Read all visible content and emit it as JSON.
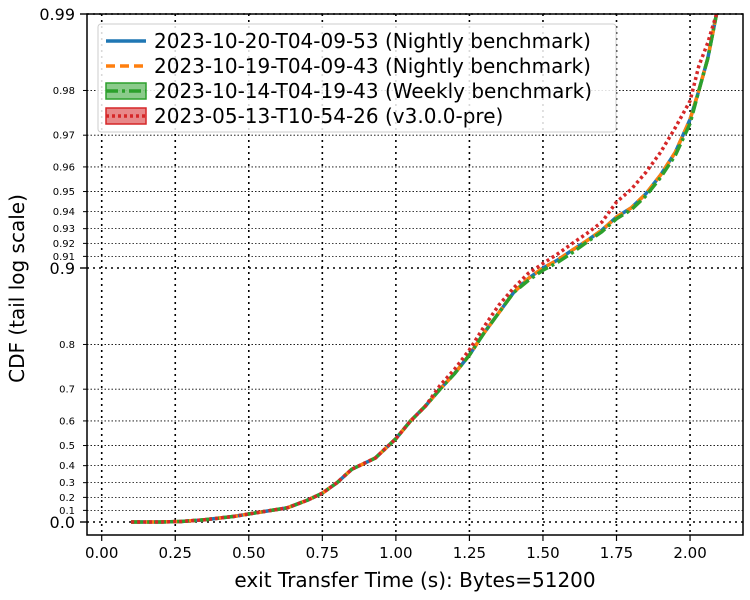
{
  "chart_data": {
    "type": "line",
    "xlabel": "exit Transfer Time (s): Bytes=51200",
    "ylabel": "CDF (tail log scale)",
    "xlim": [
      -0.05,
      2.18
    ],
    "x_ticks": [
      0.0,
      0.25,
      0.5,
      0.75,
      1.0,
      1.25,
      1.5,
      1.75,
      2.0
    ],
    "x_tick_labels": [
      "0.00",
      "0.25",
      "0.50",
      "0.75",
      "1.00",
      "1.25",
      "1.50",
      "1.75",
      "2.00"
    ],
    "y_scale": "tail-log",
    "y_major_ticks": [
      {
        "value": 0.0,
        "label": "0.0"
      },
      {
        "value": 0.9,
        "label": "0.9"
      },
      {
        "value": 0.99,
        "label": "0.99"
      }
    ],
    "y_minor_ticks": [
      {
        "value": 0.1,
        "label": "0.1"
      },
      {
        "value": 0.2,
        "label": "0.2"
      },
      {
        "value": 0.3,
        "label": "0.3"
      },
      {
        "value": 0.4,
        "label": "0.4"
      },
      {
        "value": 0.5,
        "label": "0.5"
      },
      {
        "value": 0.6,
        "label": "0.6"
      },
      {
        "value": 0.7,
        "label": "0.7"
      },
      {
        "value": 0.8,
        "label": "0.8"
      },
      {
        "value": 0.91,
        "label": "0.91"
      },
      {
        "value": 0.92,
        "label": "0.92"
      },
      {
        "value": 0.93,
        "label": "0.93"
      },
      {
        "value": 0.94,
        "label": "0.94"
      },
      {
        "value": 0.95,
        "label": "0.95"
      },
      {
        "value": 0.96,
        "label": "0.96"
      },
      {
        "value": 0.97,
        "label": "0.97"
      },
      {
        "value": 0.98,
        "label": "0.98"
      }
    ],
    "grid": true,
    "legend_position": "top-left",
    "series": [
      {
        "name": "2023-10-20-T04-09-53 (Nightly benchmark)",
        "color": "#1f77b4",
        "style": "solid",
        "points": [
          [
            0.1,
            0.0
          ],
          [
            0.2,
            0.0
          ],
          [
            0.27,
            0.005
          ],
          [
            0.35,
            0.02
          ],
          [
            0.45,
            0.05
          ],
          [
            0.55,
            0.09
          ],
          [
            0.63,
            0.12
          ],
          [
            0.7,
            0.18
          ],
          [
            0.75,
            0.23
          ],
          [
            0.8,
            0.3
          ],
          [
            0.85,
            0.38
          ],
          [
            0.93,
            0.44
          ],
          [
            1.0,
            0.53
          ],
          [
            1.05,
            0.6
          ],
          [
            1.1,
            0.65
          ],
          [
            1.15,
            0.7
          ],
          [
            1.2,
            0.74
          ],
          [
            1.25,
            0.78
          ],
          [
            1.3,
            0.82
          ],
          [
            1.35,
            0.85
          ],
          [
            1.4,
            0.875
          ],
          [
            1.45,
            0.89
          ],
          [
            1.5,
            0.9
          ],
          [
            1.55,
            0.907
          ],
          [
            1.6,
            0.915
          ],
          [
            1.65,
            0.922
          ],
          [
            1.7,
            0.929
          ],
          [
            1.75,
            0.937
          ],
          [
            1.8,
            0.942
          ],
          [
            1.85,
            0.949
          ],
          [
            1.9,
            0.957
          ],
          [
            1.95,
            0.965
          ],
          [
            2.0,
            0.974
          ],
          [
            2.03,
            0.98
          ],
          [
            2.06,
            0.985
          ],
          [
            2.09,
            0.99
          ]
        ]
      },
      {
        "name": "2023-10-19-T04-09-43 (Nightly benchmark)",
        "color": "#ff7f0e",
        "style": "dashed",
        "points": [
          [
            0.1,
            0.0
          ],
          [
            0.2,
            0.0
          ],
          [
            0.27,
            0.005
          ],
          [
            0.35,
            0.02
          ],
          [
            0.45,
            0.05
          ],
          [
            0.55,
            0.09
          ],
          [
            0.63,
            0.12
          ],
          [
            0.7,
            0.18
          ],
          [
            0.75,
            0.23
          ],
          [
            0.8,
            0.3
          ],
          [
            0.85,
            0.38
          ],
          [
            0.93,
            0.44
          ],
          [
            1.0,
            0.53
          ],
          [
            1.05,
            0.6
          ],
          [
            1.1,
            0.65
          ],
          [
            1.15,
            0.7
          ],
          [
            1.2,
            0.74
          ],
          [
            1.25,
            0.78
          ],
          [
            1.3,
            0.82
          ],
          [
            1.35,
            0.85
          ],
          [
            1.4,
            0.875
          ],
          [
            1.45,
            0.89
          ],
          [
            1.5,
            0.9
          ],
          [
            1.55,
            0.907
          ],
          [
            1.6,
            0.915
          ],
          [
            1.65,
            0.922
          ],
          [
            1.7,
            0.929
          ],
          [
            1.75,
            0.937
          ],
          [
            1.8,
            0.942
          ],
          [
            1.85,
            0.949
          ],
          [
            1.9,
            0.957
          ],
          [
            1.95,
            0.965
          ],
          [
            2.0,
            0.974
          ],
          [
            2.03,
            0.98
          ],
          [
            2.06,
            0.985
          ],
          [
            2.09,
            0.99
          ]
        ]
      },
      {
        "name": "2023-10-14-T04-19-43 (Weekly benchmark)",
        "color": "#2ca02c",
        "style": "dashdot",
        "points": [
          [
            0.1,
            0.0
          ],
          [
            0.2,
            0.0
          ],
          [
            0.27,
            0.005
          ],
          [
            0.35,
            0.02
          ],
          [
            0.45,
            0.05
          ],
          [
            0.55,
            0.09
          ],
          [
            0.63,
            0.12
          ],
          [
            0.7,
            0.18
          ],
          [
            0.75,
            0.23
          ],
          [
            0.8,
            0.3
          ],
          [
            0.85,
            0.38
          ],
          [
            0.93,
            0.44
          ],
          [
            1.0,
            0.53
          ],
          [
            1.05,
            0.6
          ],
          [
            1.1,
            0.65
          ],
          [
            1.15,
            0.7
          ],
          [
            1.2,
            0.74
          ],
          [
            1.25,
            0.78
          ],
          [
            1.3,
            0.82
          ],
          [
            1.35,
            0.85
          ],
          [
            1.4,
            0.875
          ],
          [
            1.45,
            0.888
          ],
          [
            1.5,
            0.898
          ],
          [
            1.55,
            0.905
          ],
          [
            1.6,
            0.913
          ],
          [
            1.65,
            0.921
          ],
          [
            1.7,
            0.928
          ],
          [
            1.75,
            0.936
          ],
          [
            1.8,
            0.941
          ],
          [
            1.85,
            0.948
          ],
          [
            1.9,
            0.956
          ],
          [
            1.95,
            0.964
          ],
          [
            2.0,
            0.973
          ],
          [
            2.03,
            0.98
          ],
          [
            2.06,
            0.985
          ],
          [
            2.09,
            0.99
          ]
        ]
      },
      {
        "name": "2023-05-13-T10-54-26 (v3.0.0-pre)",
        "color": "#d62728",
        "style": "dotted",
        "points": [
          [
            0.1,
            0.0
          ],
          [
            0.2,
            0.0
          ],
          [
            0.27,
            0.005
          ],
          [
            0.35,
            0.02
          ],
          [
            0.45,
            0.05
          ],
          [
            0.55,
            0.09
          ],
          [
            0.63,
            0.12
          ],
          [
            0.7,
            0.18
          ],
          [
            0.75,
            0.23
          ],
          [
            0.8,
            0.3
          ],
          [
            0.85,
            0.38
          ],
          [
            0.93,
            0.44
          ],
          [
            1.0,
            0.53
          ],
          [
            1.05,
            0.6
          ],
          [
            1.1,
            0.65
          ],
          [
            1.15,
            0.71
          ],
          [
            1.2,
            0.75
          ],
          [
            1.25,
            0.79
          ],
          [
            1.3,
            0.83
          ],
          [
            1.35,
            0.86
          ],
          [
            1.4,
            0.88
          ],
          [
            1.45,
            0.895
          ],
          [
            1.5,
            0.904
          ],
          [
            1.55,
            0.912
          ],
          [
            1.6,
            0.92
          ],
          [
            1.65,
            0.927
          ],
          [
            1.7,
            0.934
          ],
          [
            1.75,
            0.945
          ],
          [
            1.8,
            0.951
          ],
          [
            1.85,
            0.958
          ],
          [
            1.9,
            0.965
          ],
          [
            1.95,
            0.972
          ],
          [
            2.0,
            0.978
          ],
          [
            2.03,
            0.984
          ],
          [
            2.06,
            0.987
          ],
          [
            2.09,
            0.99
          ]
        ]
      }
    ]
  }
}
